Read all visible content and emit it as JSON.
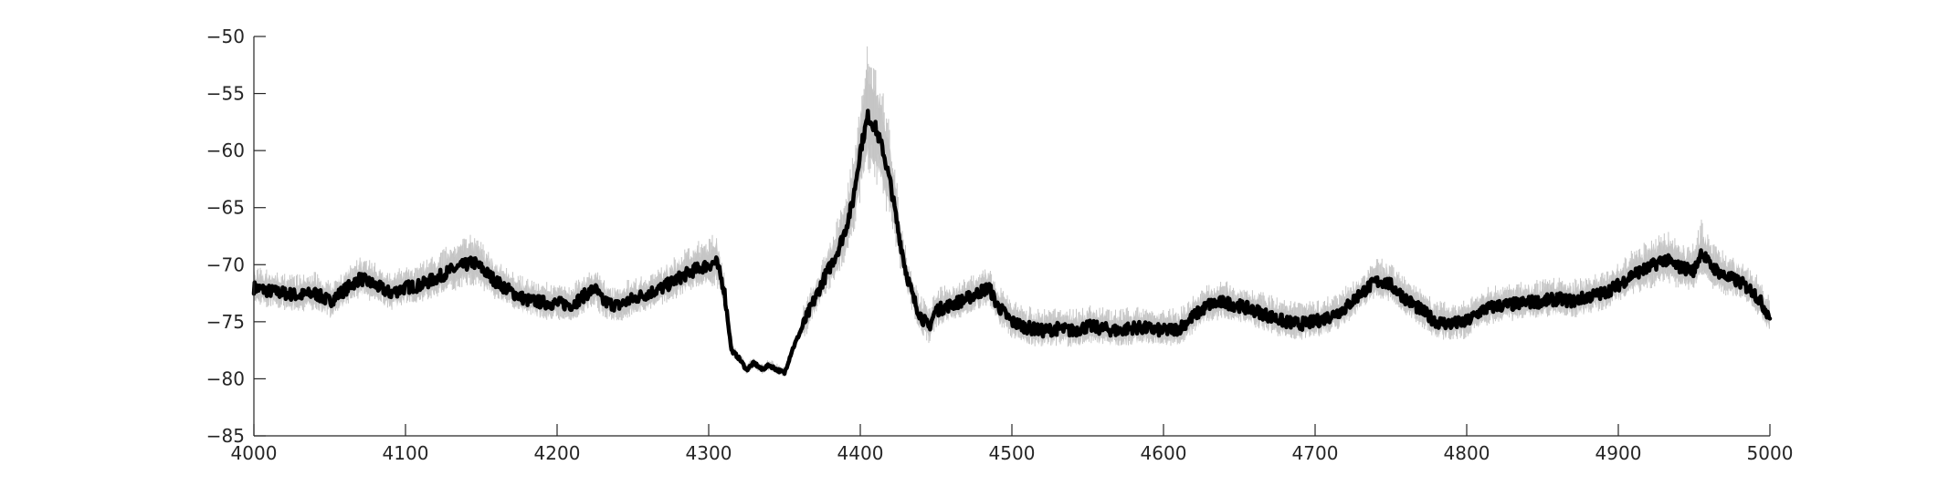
{
  "chart_data": {
    "type": "line",
    "title": "",
    "xlabel": "",
    "ylabel": "",
    "xlim": [
      4000,
      5000
    ],
    "ylim": [
      -85,
      -50
    ],
    "x_ticks": [
      4000,
      4100,
      4200,
      4300,
      4400,
      4500,
      4600,
      4700,
      4800,
      4900,
      5000
    ],
    "y_ticks": [
      -50,
      -55,
      -60,
      -65,
      -70,
      -75,
      -80,
      -85
    ],
    "grid": false,
    "legend": "none",
    "colors": {
      "mean": "#000000",
      "band": "#cccccc"
    },
    "series": [
      {
        "role": "mean",
        "x": [
          4000,
          4010,
          4020,
          4030,
          4040,
          4050,
          4060,
          4070,
          4080,
          4090,
          4100,
          4110,
          4120,
          4130,
          4140,
          4145,
          4150,
          4160,
          4170,
          4180,
          4190,
          4200,
          4210,
          4220,
          4225,
          4230,
          4240,
          4250,
          4260,
          4270,
          4280,
          4290,
          4300,
          4305,
          4310,
          4315,
          4320,
          4325,
          4330,
          4335,
          4340,
          4345,
          4350,
          4355,
          4360,
          4365,
          4370,
          4375,
          4380,
          4385,
          4390,
          4395,
          4400,
          4405,
          4410,
          4415,
          4420,
          4425,
          4430,
          4435,
          4440,
          4445,
          4450,
          4460,
          4470,
          4480,
          4485,
          4490,
          4500,
          4510,
          4520,
          4530,
          4540,
          4550,
          4560,
          4570,
          4580,
          4590,
          4600,
          4610,
          4620,
          4630,
          4640,
          4650,
          4660,
          4670,
          4680,
          4690,
          4700,
          4710,
          4720,
          4730,
          4740,
          4745,
          4750,
          4760,
          4770,
          4780,
          4790,
          4800,
          4810,
          4820,
          4830,
          4840,
          4850,
          4860,
          4870,
          4880,
          4890,
          4900,
          4910,
          4920,
          4930,
          4940,
          4950,
          4955,
          4960,
          4970,
          4980,
          4990,
          5000
        ],
        "y": [
          -72,
          -72.3,
          -72.5,
          -72.7,
          -72.5,
          -73.2,
          -72.2,
          -71.2,
          -71.8,
          -72.5,
          -72.0,
          -71.8,
          -71.2,
          -70.5,
          -70.0,
          -69.8,
          -70.3,
          -71.5,
          -72.4,
          -73.1,
          -73.3,
          -73.4,
          -73.5,
          -72.5,
          -72.1,
          -73.2,
          -73.6,
          -73.0,
          -72.5,
          -72.0,
          -71.2,
          -70.5,
          -70.0,
          -69.8,
          -72.0,
          -77.5,
          -78.2,
          -79.2,
          -78.6,
          -79.2,
          -78.8,
          -79.2,
          -79.5,
          -77.5,
          -76.0,
          -74.5,
          -73.0,
          -71.5,
          -70.2,
          -68.8,
          -67.0,
          -64.5,
          -60.0,
          -57.0,
          -58.0,
          -60.0,
          -63.0,
          -67.0,
          -70.5,
          -73.0,
          -74.5,
          -75.5,
          -74.0,
          -73.5,
          -73.0,
          -72.3,
          -72.0,
          -73.5,
          -75.0,
          -75.5,
          -75.8,
          -75.6,
          -75.8,
          -75.4,
          -75.6,
          -75.8,
          -75.5,
          -75.6,
          -75.8,
          -75.6,
          -74.5,
          -73.5,
          -73.3,
          -73.6,
          -74.0,
          -74.5,
          -75.0,
          -75.2,
          -75.0,
          -74.5,
          -73.8,
          -72.5,
          -71.5,
          -71.5,
          -71.8,
          -73.0,
          -74.0,
          -75.0,
          -75.2,
          -75.0,
          -74.0,
          -73.6,
          -73.5,
          -73.3,
          -73.2,
          -73.0,
          -73.2,
          -72.8,
          -72.5,
          -71.8,
          -70.8,
          -70.3,
          -69.5,
          -70.2,
          -70.5,
          -68.8,
          -70.0,
          -71.0,
          -71.5,
          -72.5,
          -74.5
        ]
      }
    ],
    "band": {
      "role": "spread",
      "half_width_base": 1.0,
      "half_width_peak": 3.5
    }
  }
}
